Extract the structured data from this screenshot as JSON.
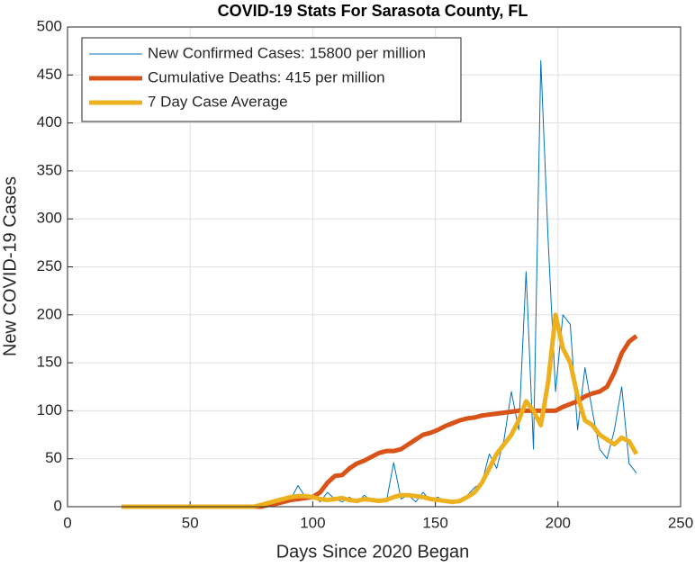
{
  "chart_data": {
    "type": "line",
    "title": "COVID-19 Stats For Sarasota County, FL",
    "x_label": "Days Since 2020 Began",
    "y_label": "New COVID-19 Cases",
    "x": [
      22,
      25,
      28,
      31,
      34,
      37,
      40,
      43,
      46,
      49,
      52,
      55,
      58,
      61,
      64,
      67,
      70,
      73,
      76,
      79,
      82,
      85,
      88,
      91,
      94,
      97,
      100,
      103,
      106,
      109,
      112,
      115,
      118,
      121,
      124,
      127,
      130,
      133,
      136,
      139,
      142,
      145,
      148,
      151,
      154,
      157,
      160,
      163,
      166,
      169,
      172,
      175,
      178,
      181,
      184,
      187,
      190,
      193,
      196,
      199,
      202,
      205,
      208,
      211,
      214,
      217,
      220,
      223,
      226,
      229,
      232
    ],
    "series": [
      {
        "name": "New Confirmed Cases: 15800 per million",
        "color": "#0072bd",
        "width": 1,
        "values": [
          0,
          0,
          0,
          0,
          0,
          0,
          0,
          0,
          0,
          0,
          0,
          0,
          0,
          0,
          0,
          0,
          0,
          0,
          0,
          1,
          3,
          5,
          10,
          8,
          22,
          10,
          12,
          5,
          15,
          8,
          5,
          10,
          4,
          12,
          6,
          8,
          5,
          46,
          8,
          12,
          5,
          15,
          6,
          10,
          5,
          3,
          8,
          12,
          20,
          25,
          55,
          40,
          70,
          120,
          80,
          245,
          60,
          465,
          277,
          120,
          200,
          190,
          80,
          145,
          100,
          60,
          50,
          80,
          125,
          45,
          35
        ]
      },
      {
        "name": "Cumulative Deaths: 415 per million",
        "color": "#d95319",
        "width": 5,
        "values": [
          0,
          0,
          0,
          0,
          0,
          0,
          0,
          0,
          0,
          0,
          0,
          0,
          0,
          0,
          0,
          0,
          0,
          0,
          0,
          0,
          2,
          3,
          5,
          7,
          8,
          9,
          10,
          15,
          25,
          32,
          33,
          40,
          45,
          48,
          52,
          56,
          58,
          58,
          60,
          65,
          70,
          75,
          77,
          80,
          84,
          87,
          90,
          92,
          93,
          95,
          96,
          97,
          98,
          99,
          100,
          100,
          100,
          100,
          100,
          100,
          104,
          107,
          110,
          115,
          118,
          120,
          125,
          140,
          160,
          172,
          178
        ]
      },
      {
        "name": "7 Day Case Average",
        "color": "#edb120",
        "width": 5,
        "values": [
          0,
          0,
          0,
          0,
          0,
          0,
          0,
          0,
          0,
          0,
          0,
          0,
          0,
          0,
          0,
          0,
          0,
          0,
          0,
          2,
          4,
          6,
          8,
          10,
          11,
          11,
          10,
          8,
          7,
          8,
          9,
          7,
          6,
          8,
          7,
          6,
          7,
          10,
          12,
          12,
          11,
          10,
          8,
          7,
          6,
          5,
          6,
          10,
          15,
          25,
          40,
          55,
          65,
          75,
          90,
          110,
          100,
          85,
          130,
          200,
          165,
          150,
          115,
          90,
          85,
          75,
          70,
          65,
          72,
          68,
          55
        ]
      }
    ],
    "xlim": [
      0,
      250
    ],
    "xticks": [
      0,
      50,
      100,
      150,
      200,
      250
    ],
    "ylim": [
      0,
      500
    ],
    "yticks": [
      0,
      50,
      100,
      150,
      200,
      250,
      300,
      350,
      400,
      450,
      500
    ],
    "grid": true,
    "legend": "upper-left"
  }
}
